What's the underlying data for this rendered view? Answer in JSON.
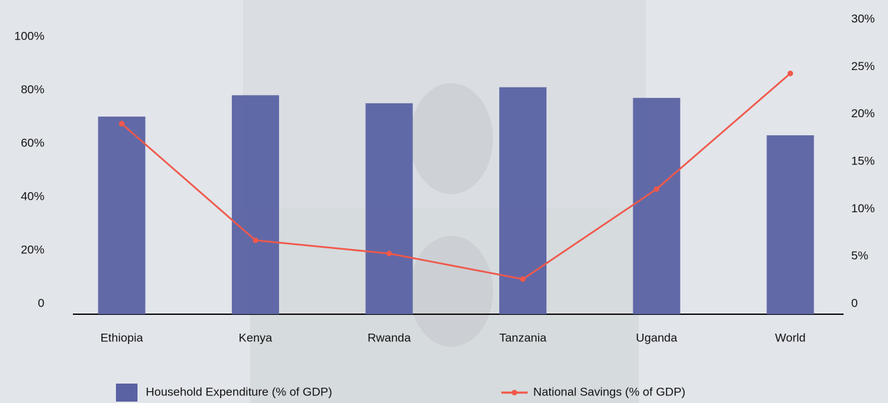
{
  "chart_data": {
    "type": "bar",
    "categories": [
      "Ethiopia",
      "Kenya",
      "Rwanda",
      "Tanzania",
      "Uganda",
      "World"
    ],
    "series": [
      {
        "name": "Household Expenditure (% of GDP)",
        "color": "#5a62a3",
        "values": [
          74,
          82,
          79,
          85,
          81,
          67
        ]
      },
      {
        "name": "National Savings (% of GDP)",
        "color": "#f0584a",
        "type": "line",
        "axis": "y2",
        "values": [
          20.1,
          7.8,
          6.4,
          3.7,
          13.2,
          25.4
        ]
      }
    ],
    "ylim": [
      0,
      100
    ],
    "yticks": [
      0,
      {
        "value": 20,
        "label": "20%"
      },
      {
        "value": 40,
        "label": "40%"
      },
      {
        "value": 60,
        "label": "60%"
      },
      {
        "value": 80,
        "label": "80%"
      },
      {
        "value": 100,
        "label": "100%"
      }
    ],
    "y2lim": [
      0,
      30
    ],
    "y2ticks": [
      0,
      {
        "value": 5,
        "label": "5%"
      },
      {
        "value": 10,
        "label": "10%"
      },
      {
        "value": 15,
        "label": "15%"
      },
      {
        "value": 20,
        "label": "20%"
      },
      {
        "value": 25,
        "label": "25%"
      },
      {
        "value": 30,
        "label": "30%"
      }
    ],
    "legend": "bottom"
  }
}
